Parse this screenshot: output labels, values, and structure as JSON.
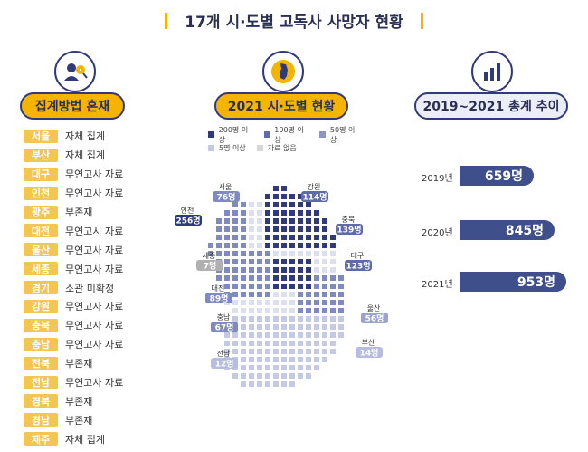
{
  "title": "17개 시·도별 고독사 사망자 현황",
  "sections": {
    "left": "집계방법 혼재",
    "middle": "2021 시·도별 현황",
    "right": "2019~2021 총계 추이"
  },
  "regions": [
    {
      "name": "서울",
      "method": "자체 집계"
    },
    {
      "name": "부산",
      "method": "자체 집계"
    },
    {
      "name": "대구",
      "method": "무연고사 자료"
    },
    {
      "name": "인천",
      "method": "무연고사 자료"
    },
    {
      "name": "광주",
      "method": "부존재"
    },
    {
      "name": "대전",
      "method": "무연고시 자료"
    },
    {
      "name": "울산",
      "method": "무연고사 자료"
    },
    {
      "name": "세종",
      "method": "무연고사 자료"
    },
    {
      "name": "경기",
      "method": "소관 미확정"
    },
    {
      "name": "강원",
      "method": "무연고사 자료"
    },
    {
      "name": "충북",
      "method": "무연고사 자료"
    },
    {
      "name": "충남",
      "method": "무연고사 자료"
    },
    {
      "name": "전북",
      "method": "부존재"
    },
    {
      "name": "전남",
      "method": "무연고사 자료"
    },
    {
      "name": "경북",
      "method": "부존재"
    },
    {
      "name": "경남",
      "method": "부존재"
    },
    {
      "name": "제주",
      "method": "자체 집계"
    }
  ],
  "legend": [
    {
      "label": "200명 이상",
      "color": "#2f3a7a"
    },
    {
      "label": "100명 이상",
      "color": "#5f6aa8"
    },
    {
      "label": "50명 이상",
      "color": "#8c95c8"
    },
    {
      "label": "5명 이상",
      "color": "#c4c9e4"
    },
    {
      "label": "자료 없음",
      "color": "#d8d8d8"
    }
  ],
  "map_labels": [
    {
      "name": "서울",
      "value": "76명",
      "color": "#7f89c2"
    },
    {
      "name": "인천",
      "value": "256명",
      "color": "#2f3a7a"
    },
    {
      "name": "강원",
      "value": "114명",
      "color": "#5f6aa8"
    },
    {
      "name": "충북",
      "value": "139명",
      "color": "#5f6aa8"
    },
    {
      "name": "세종",
      "value": "7명",
      "color": "#b0b0b0"
    },
    {
      "name": "대구",
      "value": "123명",
      "color": "#5f6aa8"
    },
    {
      "name": "대전",
      "value": "89명",
      "color": "#7f89c2"
    },
    {
      "name": "울산",
      "value": "56명",
      "color": "#9aa2d2"
    },
    {
      "name": "충남",
      "value": "67명",
      "color": "#7f89c2"
    },
    {
      "name": "부산",
      "value": "14명",
      "color": "#b7bde0"
    },
    {
      "name": "전남",
      "value": "12명",
      "color": "#b7bde0"
    }
  ],
  "chart_data": {
    "type": "bar",
    "categories": [
      "2019년",
      "2020년",
      "2021년"
    ],
    "values": [
      659,
      845,
      953
    ],
    "value_labels": [
      "659명",
      "845명",
      "953명"
    ],
    "title": "2019~2021 총계 추이",
    "xlabel": "",
    "ylabel": "",
    "xlim": [
      0,
      953
    ]
  }
}
